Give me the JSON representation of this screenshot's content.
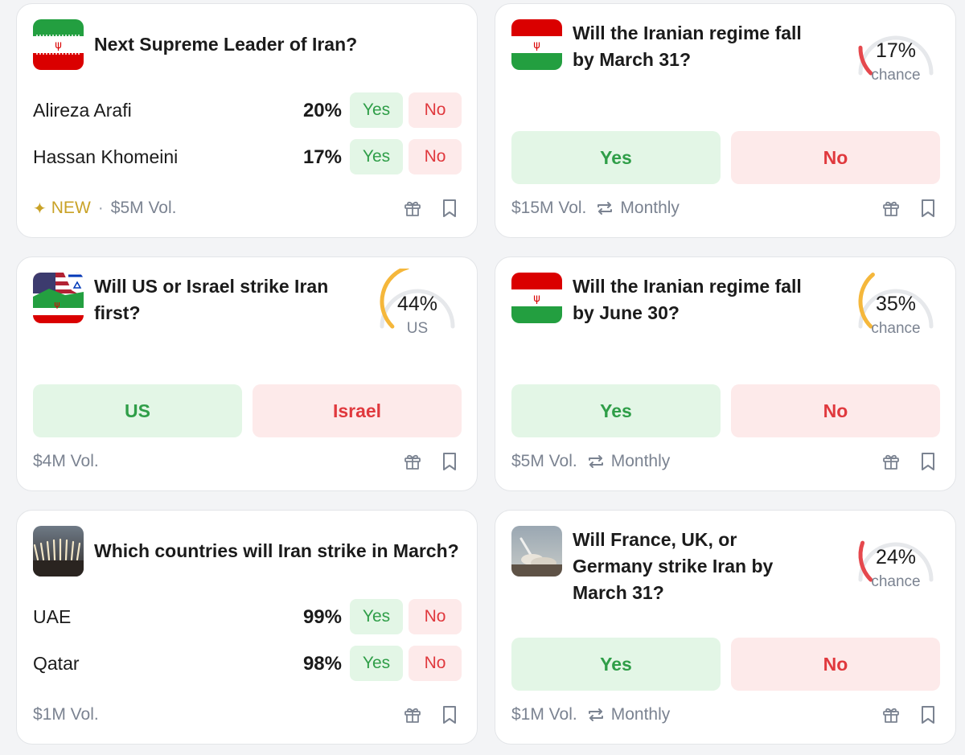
{
  "colors": {
    "yes_bg": "#e3f6e6",
    "yes_text": "#2f9e48",
    "no_bg": "#fdeaea",
    "no_text": "#e0393e",
    "gauge_low": "#e5484d",
    "gauge_mid": "#f5b73b",
    "gauge_track": "#e6e8eb",
    "new_badge": "#c9a227"
  },
  "cards": [
    {
      "thumbnail": "iran-flag",
      "title": "Next Supreme Leader of Iran?",
      "outcomes": [
        {
          "label": "Alireza Arafi",
          "percent": "20%",
          "yes": "Yes",
          "no": "No"
        },
        {
          "label": "Hassan Khomeini",
          "percent": "17%",
          "yes": "Yes",
          "no": "No"
        }
      ],
      "footer": {
        "new": "NEW",
        "dot": "·",
        "volume": "$5M Vol."
      }
    },
    {
      "thumbnail": "iran-flag",
      "title": "Will the Iranian regime fall by March 31?",
      "gauge": {
        "value": "17%",
        "label": "chance",
        "fraction": 0.17
      },
      "buttons": {
        "yes": "Yes",
        "no": "No"
      },
      "footer": {
        "volume": "$15M Vol.",
        "recurrence": "Monthly"
      }
    },
    {
      "thumbnail": "us-israel-iran-flags",
      "title": "Will US or Israel strike Iran first?",
      "gauge": {
        "value": "44%",
        "label": "US",
        "fraction": 0.44
      },
      "buttons": {
        "yes": "US",
        "no": "Israel"
      },
      "footer": {
        "volume": "$4M Vol."
      }
    },
    {
      "thumbnail": "iran-flag",
      "title": "Will the Iranian regime fall by June 30?",
      "gauge": {
        "value": "35%",
        "label": "chance",
        "fraction": 0.35
      },
      "buttons": {
        "yes": "Yes",
        "no": "No"
      },
      "footer": {
        "volume": "$5M Vol.",
        "recurrence": "Monthly"
      }
    },
    {
      "thumbnail": "missile-launch-photo",
      "title": "Which countries will Iran strike in March?",
      "outcomes": [
        {
          "label": "UAE",
          "percent": "99%",
          "yes": "Yes",
          "no": "No"
        },
        {
          "label": "Qatar",
          "percent": "98%",
          "yes": "Yes",
          "no": "No"
        }
      ],
      "footer": {
        "volume": "$1M Vol."
      }
    },
    {
      "thumbnail": "rocket-launch-photo",
      "title": "Will France, UK, or Germany strike Iran by March 31?",
      "gauge": {
        "value": "24%",
        "label": "chance",
        "fraction": 0.24
      },
      "buttons": {
        "yes": "Yes",
        "no": "No"
      },
      "footer": {
        "volume": "$1M Vol.",
        "recurrence": "Monthly"
      }
    }
  ]
}
